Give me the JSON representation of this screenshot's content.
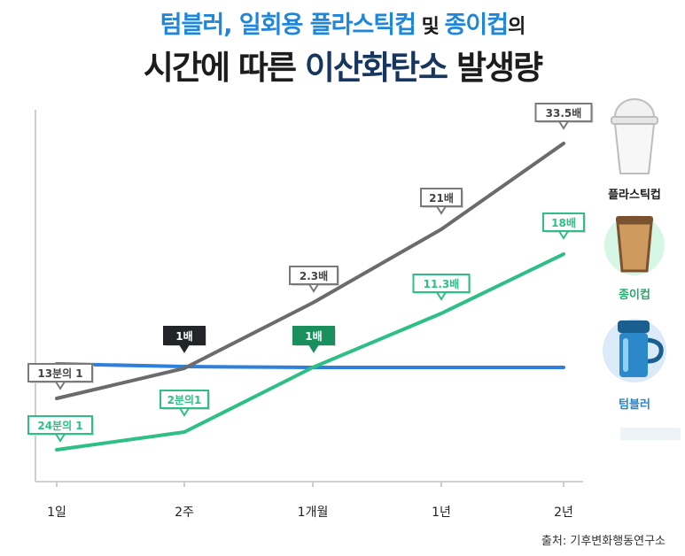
{
  "title": {
    "line1": [
      {
        "text": "텀블러, 일회용 플라스틱컵",
        "style": "blue"
      },
      {
        "text": " 및 ",
        "style": "dark small"
      },
      {
        "text": "종이컵",
        "style": "blue"
      },
      {
        "text": "의",
        "style": "dark small"
      }
    ],
    "line2": [
      {
        "text": "시간에 따른 ",
        "style": "dark"
      },
      {
        "text": "이산화탄소",
        "style": "navy"
      },
      {
        "text": " 발생량",
        "style": "dark"
      }
    ]
  },
  "legend": {
    "plastic": {
      "label": "플라스틱컵",
      "color": "#1c1c1c",
      "icon": "plastic-cup-icon"
    },
    "paper": {
      "label": "종이컵",
      "color": "#26a96c",
      "icon": "paper-cup-icon"
    },
    "tumbler": {
      "label": "텀블러",
      "color": "#1f86d9",
      "icon": "tumbler-icon"
    }
  },
  "source": "출처: 기후변화행동연구소",
  "chart_data": {
    "type": "line",
    "categories": [
      "1일",
      "2주",
      "1개월",
      "1년",
      "2년"
    ],
    "series": [
      {
        "name": "플라스틱컵",
        "color": "#6b6b6e",
        "values": [
          0.077,
          1,
          2.3,
          21,
          33.5
        ],
        "labels": [
          "13분의 1",
          "1배",
          "2.3배",
          "21배",
          "33.5배"
        ]
      },
      {
        "name": "종이컵",
        "color": "#2dbf85",
        "values": [
          0.042,
          0.5,
          1,
          11.3,
          18
        ],
        "labels": [
          "24분의 1",
          "2분의1",
          "1배",
          "11.3배",
          "18배"
        ]
      },
      {
        "name": "텀블러",
        "color": "#2f7fdc",
        "values": [
          1,
          1,
          1,
          1,
          1
        ]
      }
    ],
    "grid": false,
    "legend_position": "right"
  }
}
